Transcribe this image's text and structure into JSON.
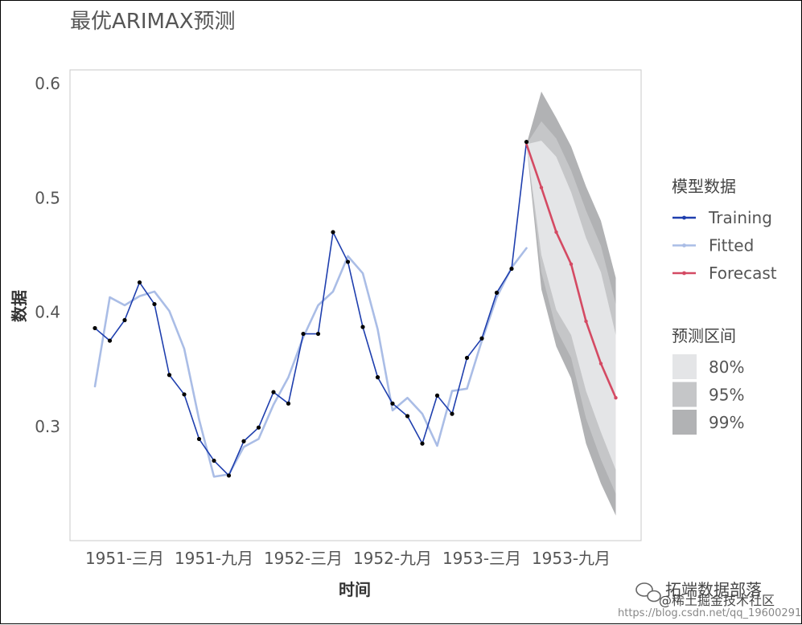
{
  "chart_data": {
    "type": "line",
    "title": "最优ARIMAX预测",
    "xlabel": "时间",
    "ylabel": "数据",
    "ylim": [
      0.2,
      0.612
    ],
    "xlim": [
      0,
      36.7
    ],
    "grid": false,
    "legend_placement": "right",
    "x_tick_labels": [
      "1951-三月",
      "1951-九月",
      "1952-三月",
      "1952-九月",
      "1953-三月",
      "1953-九月"
    ],
    "x_tick_positions": [
      2,
      8,
      14,
      20,
      26,
      32
    ],
    "y_ticks": [
      0.3,
      0.4,
      0.5,
      0.6
    ],
    "legend_series_title": "模型数据",
    "legend_interval_title": "预测区间",
    "series": [
      {
        "name": "Training",
        "color": "#1f3fae",
        "x": [
          0,
          1,
          2,
          3,
          4,
          5,
          6,
          7,
          8,
          9,
          10,
          11,
          12,
          13,
          14,
          15,
          16,
          17,
          18,
          19,
          20,
          21,
          22,
          23,
          24,
          25,
          26,
          27,
          28,
          29
        ],
        "values": [
          0.386,
          0.375,
          0.393,
          0.426,
          0.407,
          0.345,
          0.328,
          0.289,
          0.27,
          0.257,
          0.287,
          0.299,
          0.33,
          0.32,
          0.381,
          0.381,
          0.47,
          0.444,
          0.387,
          0.343,
          0.32,
          0.309,
          0.285,
          0.327,
          0.311,
          0.36,
          0.377,
          0.417,
          0.438,
          0.549
        ]
      },
      {
        "name": "Fitted",
        "color": "#aabde6",
        "x": [
          0,
          1,
          2,
          3,
          4,
          5,
          6,
          7,
          8,
          9,
          10,
          11,
          12,
          13,
          14,
          15,
          16,
          17,
          18,
          19,
          20,
          21,
          22,
          23,
          24,
          25,
          26,
          27,
          28,
          29
        ],
        "values": [
          0.335,
          0.413,
          0.406,
          0.414,
          0.418,
          0.401,
          0.368,
          0.306,
          0.256,
          0.258,
          0.282,
          0.289,
          0.319,
          0.343,
          0.378,
          0.406,
          0.418,
          0.449,
          0.434,
          0.385,
          0.314,
          0.325,
          0.311,
          0.283,
          0.331,
          0.333,
          0.375,
          0.413,
          0.439,
          0.456
        ]
      },
      {
        "name": "Forecast",
        "color": "#d44a63",
        "x": [
          29,
          30,
          31,
          32,
          33,
          34,
          35
        ],
        "values": [
          0.547,
          0.509,
          0.47,
          0.442,
          0.392,
          0.355,
          0.325
        ]
      }
    ],
    "intervals": [
      {
        "name": "80%",
        "color": "#e4e5e7",
        "x": [
          29,
          30,
          31,
          32,
          33,
          34,
          35
        ],
        "lower": [
          0.547,
          0.45,
          0.402,
          0.38,
          0.331,
          0.295,
          0.262
        ],
        "upper": [
          0.547,
          0.55,
          0.536,
          0.505,
          0.465,
          0.435,
          0.38
        ]
      },
      {
        "name": "95%",
        "color": "#c5c6c8",
        "x": [
          29,
          30,
          31,
          32,
          33,
          34,
          35
        ],
        "lower": [
          0.547,
          0.435,
          0.385,
          0.36,
          0.307,
          0.271,
          0.241
        ],
        "upper": [
          0.547,
          0.567,
          0.552,
          0.524,
          0.489,
          0.458,
          0.407
        ]
      },
      {
        "name": "99%",
        "color": "#b1b2b4",
        "x": [
          29,
          30,
          31,
          32,
          33,
          34,
          35
        ],
        "lower": [
          0.547,
          0.42,
          0.37,
          0.342,
          0.285,
          0.25,
          0.222
        ],
        "upper": [
          0.547,
          0.593,
          0.57,
          0.545,
          0.51,
          0.48,
          0.43
        ]
      }
    ]
  },
  "watermark": {
    "brand": "拓端数据部落",
    "site": "@稀土掘金技术社区",
    "url": "https://blog.csdn.net/qq_19600291"
  }
}
